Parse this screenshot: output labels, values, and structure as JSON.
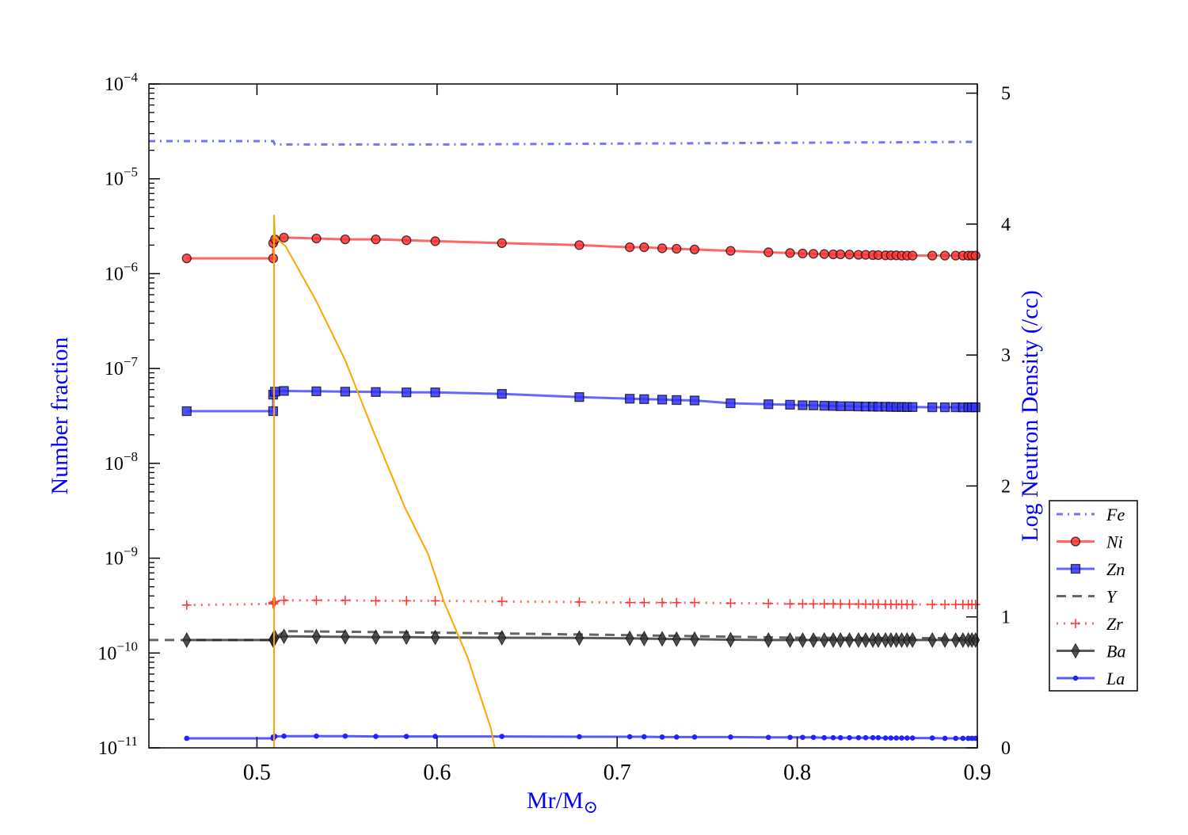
{
  "chart_data": {
    "type": "line",
    "xlabel": "Mr/M",
    "xlabel_sub": "⊙",
    "ylabel_left": "Number fraction",
    "ylabel_right": "Log Neutron Density (/cc)",
    "xlim": [
      0.44,
      0.9
    ],
    "ylim_left": [
      1e-11,
      0.0001
    ],
    "yscale_left": "log",
    "ylim_right": [
      0,
      5.07
    ],
    "grid": false,
    "legend_placement": "outside-right",
    "xticks": [
      {
        "value": 0.5,
        "label": "0.5"
      },
      {
        "value": 0.6,
        "label": "0.6"
      },
      {
        "value": 0.7,
        "label": "0.7"
      },
      {
        "value": 0.8,
        "label": "0.8"
      },
      {
        "value": 0.9,
        "label": "0.9"
      }
    ],
    "yticks_left": [
      {
        "value": 0.0001,
        "base": "10",
        "exp": "−4"
      },
      {
        "value": 1e-05,
        "base": "10",
        "exp": "−5"
      },
      {
        "value": 1e-06,
        "base": "10",
        "exp": "−6"
      },
      {
        "value": 1e-07,
        "base": "10",
        "exp": "−7"
      },
      {
        "value": 1e-08,
        "base": "10",
        "exp": "−8"
      },
      {
        "value": 1e-09,
        "base": "10",
        "exp": "−9"
      },
      {
        "value": 1e-10,
        "base": "10",
        "exp": "−10"
      },
      {
        "value": 1e-11,
        "base": "10",
        "exp": "−11"
      }
    ],
    "yticks_right": [
      {
        "value": 0,
        "label": "0"
      },
      {
        "value": 1,
        "label": "1"
      },
      {
        "value": 2,
        "label": "2"
      },
      {
        "value": 3,
        "label": "3"
      },
      {
        "value": 4,
        "label": "4"
      },
      {
        "value": 5,
        "label": "5"
      }
    ],
    "marker_x": [
      0.461,
      0.509,
      0.509,
      0.51,
      0.515,
      0.533,
      0.549,
      0.566,
      0.583,
      0.599,
      0.636,
      0.679,
      0.707,
      0.715,
      0.725,
      0.733,
      0.743,
      0.763,
      0.784,
      0.796,
      0.803,
      0.809,
      0.815,
      0.82,
      0.824,
      0.829,
      0.834,
      0.838,
      0.842,
      0.845,
      0.849,
      0.852,
      0.855,
      0.858,
      0.861,
      0.864,
      0.875,
      0.882,
      0.888,
      0.892,
      0.895,
      0.897,
      0.899
    ],
    "series": [
      {
        "name": "Fe",
        "axis": "left",
        "color": "#4444ff",
        "style": "dashdot",
        "marker": "none",
        "x": [
          0.44,
          0.509,
          0.51,
          0.6,
          0.7,
          0.8,
          0.9
        ],
        "y": [
          2.5e-05,
          2.5e-05,
          2.3e-05,
          2.3e-05,
          2.35e-05,
          2.4e-05,
          2.45e-05
        ]
      },
      {
        "name": "Ni",
        "axis": "left",
        "color": "#ff3333",
        "style": "solid",
        "marker": "circle",
        "y": [
          1.45e-06,
          1.45e-06,
          2.1e-06,
          2.3e-06,
          2.4e-06,
          2.35e-06,
          2.3e-06,
          2.3e-06,
          2.25e-06,
          2.2e-06,
          2.1e-06,
          2e-06,
          1.9e-06,
          1.9e-06,
          1.85e-06,
          1.83e-06,
          1.8e-06,
          1.74e-06,
          1.68e-06,
          1.65e-06,
          1.63e-06,
          1.62e-06,
          1.61e-06,
          1.6e-06,
          1.6e-06,
          1.59e-06,
          1.58e-06,
          1.58e-06,
          1.57e-06,
          1.57e-06,
          1.56e-06,
          1.56e-06,
          1.56e-06,
          1.55e-06,
          1.55e-06,
          1.55e-06,
          1.55e-06,
          1.55e-06,
          1.55e-06,
          1.55e-06,
          1.55e-06,
          1.55e-06,
          1.55e-06
        ]
      },
      {
        "name": "Zn",
        "axis": "left",
        "color": "#3333ff",
        "style": "solid",
        "marker": "square",
        "y": [
          3.55e-08,
          3.55e-08,
          5.3e-08,
          5.7e-08,
          5.8e-08,
          5.75e-08,
          5.7e-08,
          5.65e-08,
          5.6e-08,
          5.6e-08,
          5.4e-08,
          5e-08,
          4.8e-08,
          4.75e-08,
          4.7e-08,
          4.65e-08,
          4.6e-08,
          4.3e-08,
          4.2e-08,
          4.15e-08,
          4.1e-08,
          4.08e-08,
          4.05e-08,
          4.03e-08,
          4e-08,
          4e-08,
          3.98e-08,
          3.97e-08,
          3.96e-08,
          3.95e-08,
          3.95e-08,
          3.94e-08,
          3.93e-08,
          3.93e-08,
          3.92e-08,
          3.92e-08,
          3.9e-08,
          3.9e-08,
          3.9e-08,
          3.9e-08,
          3.9e-08,
          3.9e-08,
          3.9e-08
        ]
      },
      {
        "name": "Y",
        "axis": "left",
        "color": "#333333",
        "style": "dashed",
        "marker": "none",
        "x": [
          0.44,
          0.509,
          0.515,
          0.6,
          0.7,
          0.8,
          0.9
        ],
        "y": [
          1.37e-10,
          1.37e-10,
          1.7e-10,
          1.64e-10,
          1.55e-10,
          1.45e-10,
          1.43e-10
        ]
      },
      {
        "name": "Zr",
        "axis": "left",
        "color": "#ff3333",
        "style": "dotted",
        "marker": "plus",
        "y": [
          3.2e-10,
          3.3e-10,
          3.4e-10,
          3.5e-10,
          3.6e-10,
          3.6e-10,
          3.6e-10,
          3.55e-10,
          3.55e-10,
          3.55e-10,
          3.5e-10,
          3.45e-10,
          3.4e-10,
          3.4e-10,
          3.4e-10,
          3.4e-10,
          3.4e-10,
          3.35e-10,
          3.33e-10,
          3.3e-10,
          3.3e-10,
          3.3e-10,
          3.3e-10,
          3.3e-10,
          3.28e-10,
          3.28e-10,
          3.28e-10,
          3.27e-10,
          3.27e-10,
          3.27e-10,
          3.26e-10,
          3.26e-10,
          3.26e-10,
          3.26e-10,
          3.25e-10,
          3.25e-10,
          3.25e-10,
          3.25e-10,
          3.25e-10,
          3.25e-10,
          3.25e-10,
          3.25e-10,
          3.25e-10
        ]
      },
      {
        "name": "Ba",
        "axis": "left",
        "color": "#222222",
        "style": "solid",
        "marker": "diamond",
        "y": [
          1.37e-10,
          1.37e-10,
          1.4e-10,
          1.45e-10,
          1.5e-10,
          1.49e-10,
          1.48e-10,
          1.47e-10,
          1.47e-10,
          1.46e-10,
          1.45e-10,
          1.44e-10,
          1.43e-10,
          1.42e-10,
          1.41e-10,
          1.4e-10,
          1.4e-10,
          1.38e-10,
          1.37e-10,
          1.37e-10,
          1.37e-10,
          1.37e-10,
          1.37e-10,
          1.37e-10,
          1.37e-10,
          1.37e-10,
          1.37e-10,
          1.37e-10,
          1.37e-10,
          1.37e-10,
          1.37e-10,
          1.37e-10,
          1.37e-10,
          1.37e-10,
          1.37e-10,
          1.37e-10,
          1.37e-10,
          1.37e-10,
          1.37e-10,
          1.37e-10,
          1.37e-10,
          1.37e-10,
          1.37e-10
        ]
      },
      {
        "name": "La",
        "axis": "left",
        "color": "#2222ff",
        "style": "solid",
        "marker": "dot",
        "y": [
          1.26e-11,
          1.26e-11,
          1.3e-11,
          1.32e-11,
          1.33e-11,
          1.33e-11,
          1.33e-11,
          1.32e-11,
          1.32e-11,
          1.32e-11,
          1.32e-11,
          1.31e-11,
          1.31e-11,
          1.31e-11,
          1.3e-11,
          1.3e-11,
          1.3e-11,
          1.3e-11,
          1.29e-11,
          1.29e-11,
          1.29e-11,
          1.29e-11,
          1.28e-11,
          1.28e-11,
          1.28e-11,
          1.28e-11,
          1.28e-11,
          1.28e-11,
          1.28e-11,
          1.28e-11,
          1.27e-11,
          1.27e-11,
          1.27e-11,
          1.27e-11,
          1.27e-11,
          1.27e-11,
          1.27e-11,
          1.26e-11,
          1.26e-11,
          1.26e-11,
          1.26e-11,
          1.26e-11,
          1.26e-11
        ]
      },
      {
        "name": "Log Neutron Density",
        "axis": "right",
        "color": "#ffa500",
        "style": "solid",
        "marker": "none",
        "in_legend": false,
        "x": [
          0.5095,
          0.5095,
          0.51,
          0.516,
          0.533,
          0.549,
          0.564,
          0.582,
          0.595,
          0.604,
          0.617,
          0.63,
          0.632
        ],
        "y": [
          0,
          4.07,
          3.9,
          3.83,
          3.41,
          2.96,
          2.44,
          1.84,
          1.48,
          1.11,
          0.69,
          0.145,
          0
        ]
      }
    ]
  }
}
